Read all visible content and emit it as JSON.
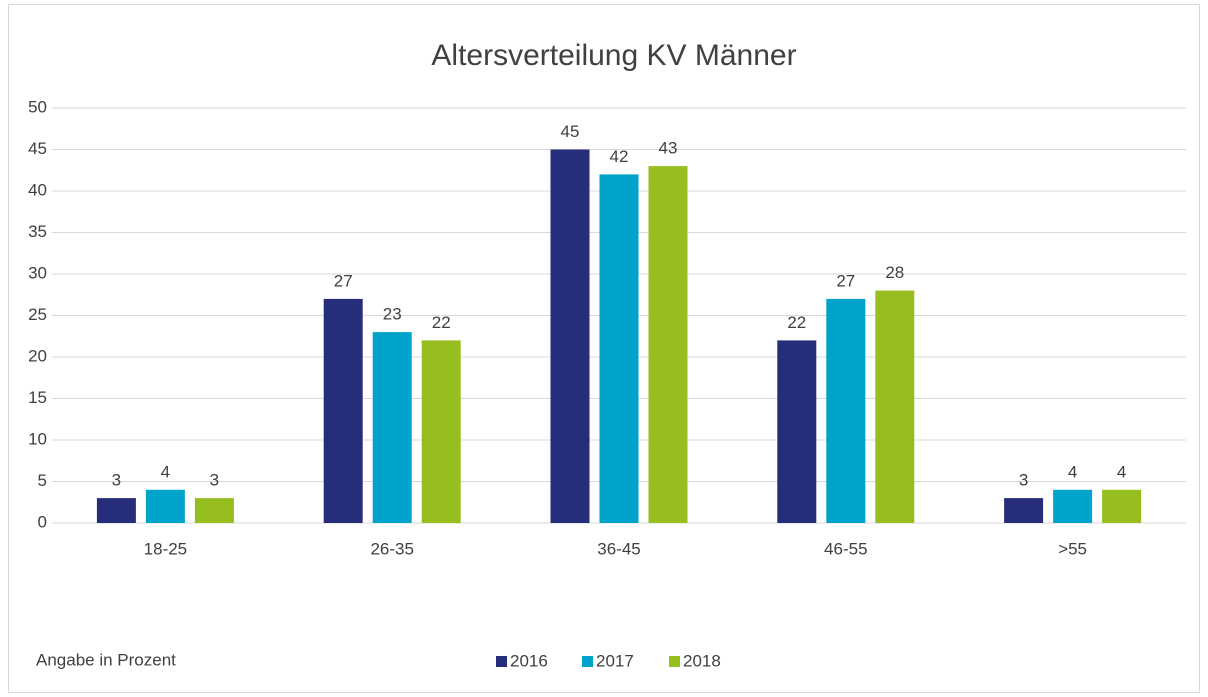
{
  "chart_data": {
    "type": "bar",
    "title": "Altersverteilung KV Männer",
    "annotation": "Angabe in Prozent",
    "categories": [
      "18-25",
      "26-35",
      "36-45",
      "46-55",
      ">55"
    ],
    "series": [
      {
        "name": "2016",
        "color": "#262d7a",
        "values": [
          3,
          27,
          45,
          22,
          3
        ]
      },
      {
        "name": "2017",
        "color": "#00a3c9",
        "values": [
          4,
          23,
          42,
          27,
          4
        ]
      },
      {
        "name": "2018",
        "color": "#97be1f",
        "values": [
          3,
          22,
          43,
          28,
          4
        ]
      }
    ],
    "ylim": [
      0,
      50
    ],
    "yticks": [
      0,
      5,
      10,
      15,
      20,
      25,
      30,
      35,
      40,
      45,
      50
    ],
    "grid": true,
    "legend": "bottom"
  }
}
